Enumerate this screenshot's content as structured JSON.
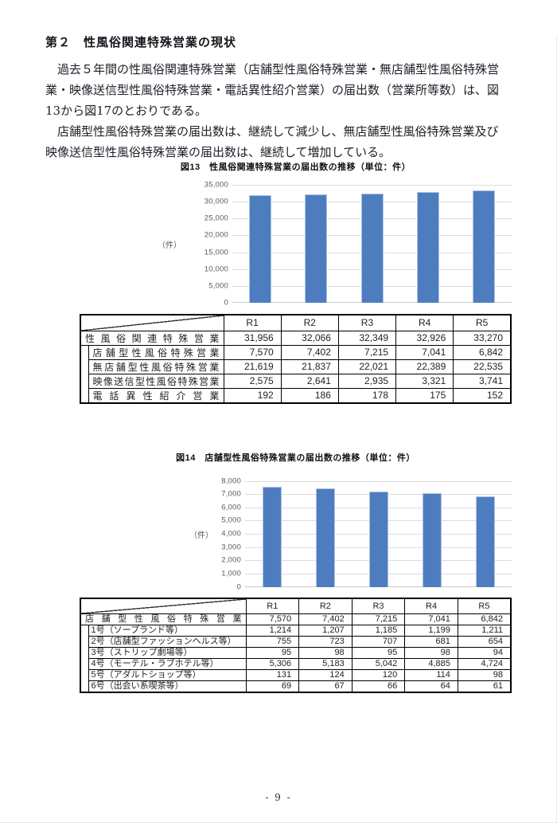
{
  "page": {
    "heading": "第２　性風俗関連特殊営業の現状",
    "body_lines": [
      {
        "text": "過去５年間の性風俗関連特殊営業（店舗型性風俗特殊営業・無店舗型性風俗特殊営",
        "indent": true
      },
      {
        "text": "業・映像送信型性風俗特殊営業・電話異性紹介営業）の届出数（営業所等数）は、図",
        "indent": false
      },
      {
        "text": "13から図17のとおりである。",
        "indent": false
      },
      {
        "text": "店舗型性風俗特殊営業の届出数は、継続して減少し、無店舗型性風俗特殊営業及び",
        "indent": true
      },
      {
        "text": "映像送信型性風俗特殊営業の届出数は、継続して増加している。",
        "indent": false
      }
    ],
    "page_number": "- 9 -"
  },
  "chart_data": [
    {
      "type": "bar",
      "title": "図13　性風俗関連特殊営業の届出数の推移（単位：件）",
      "categories": [
        "R1",
        "R2",
        "R3",
        "R4",
        "R5"
      ],
      "values": [
        31956,
        32066,
        32349,
        32926,
        33270
      ],
      "ylabel": "（件）",
      "ylim": [
        0,
        35000
      ],
      "ytick_step": 5000,
      "grid": true,
      "legend": "none"
    },
    {
      "type": "bar",
      "title": "図14　店舗型性風俗特殊営業の届出数の推移（単位：件）",
      "categories": [
        "R1",
        "R2",
        "R3",
        "R4",
        "R5"
      ],
      "values": [
        7570,
        7402,
        7215,
        7041,
        6842
      ],
      "ylabel": "（件）",
      "ylim": [
        0,
        8000
      ],
      "ytick_step": 1000,
      "grid": true,
      "legend": "none"
    }
  ],
  "tables": [
    {
      "col_headers": [
        "R1",
        "R2",
        "R3",
        "R4",
        "R5"
      ],
      "rows": [
        {
          "label": "性風俗関連特殊営業",
          "justify": true,
          "indent": false,
          "values": [
            "31,956",
            "32,066",
            "32,349",
            "32,926",
            "33,270"
          ]
        },
        {
          "label": "店舗型性風俗特殊営業",
          "justify": true,
          "indent": true,
          "values": [
            "7,570",
            "7,402",
            "7,215",
            "7,041",
            "6,842"
          ]
        },
        {
          "label": "無店舗型性風俗特殊営業",
          "justify": true,
          "indent": true,
          "values": [
            "21,619",
            "21,837",
            "22,021",
            "22,389",
            "22,535"
          ]
        },
        {
          "label": "映像送信型性風俗特殊営業",
          "justify": true,
          "indent": true,
          "values": [
            "2,575",
            "2,641",
            "2,935",
            "3,321",
            "3,741"
          ]
        },
        {
          "label": "電話異性紹介営業",
          "justify": true,
          "indent": true,
          "values": [
            "192",
            "186",
            "178",
            "175",
            "152"
          ]
        }
      ]
    },
    {
      "col_headers": [
        "R1",
        "R2",
        "R3",
        "R4",
        "R5"
      ],
      "rows": [
        {
          "label": "店舗型性風俗特殊営業",
          "justify": true,
          "indent": false,
          "values": [
            "7,570",
            "7,402",
            "7,215",
            "7,041",
            "6,842"
          ]
        },
        {
          "label": "1号（ソープランド等）",
          "justify": false,
          "indent": true,
          "values": [
            "1,214",
            "1,207",
            "1,185",
            "1,199",
            "1,211"
          ]
        },
        {
          "label": "2号（店舗型ファッションヘルス等）",
          "justify": false,
          "indent": true,
          "values": [
            "755",
            "723",
            "707",
            "681",
            "654"
          ]
        },
        {
          "label": "3号（ストリップ劇場等）",
          "justify": false,
          "indent": true,
          "values": [
            "95",
            "98",
            "95",
            "98",
            "94"
          ]
        },
        {
          "label": "4号（モーテル・ラブホテル等）",
          "justify": false,
          "indent": true,
          "values": [
            "5,306",
            "5,183",
            "5,042",
            "4,885",
            "4,724"
          ]
        },
        {
          "label": "5号（アダルトショップ等）",
          "justify": false,
          "indent": true,
          "values": [
            "131",
            "124",
            "120",
            "114",
            "98"
          ]
        },
        {
          "label": "6号（出会い系喫茶等）",
          "justify": false,
          "indent": true,
          "values": [
            "69",
            "67",
            "66",
            "64",
            "61"
          ]
        }
      ]
    }
  ],
  "colors": {
    "bar": "#4d7dbe",
    "bar_border": "#aec3e0",
    "gridline": "#dcdcdc",
    "axis": "#c9c9c9",
    "tick_text": "#595959"
  }
}
